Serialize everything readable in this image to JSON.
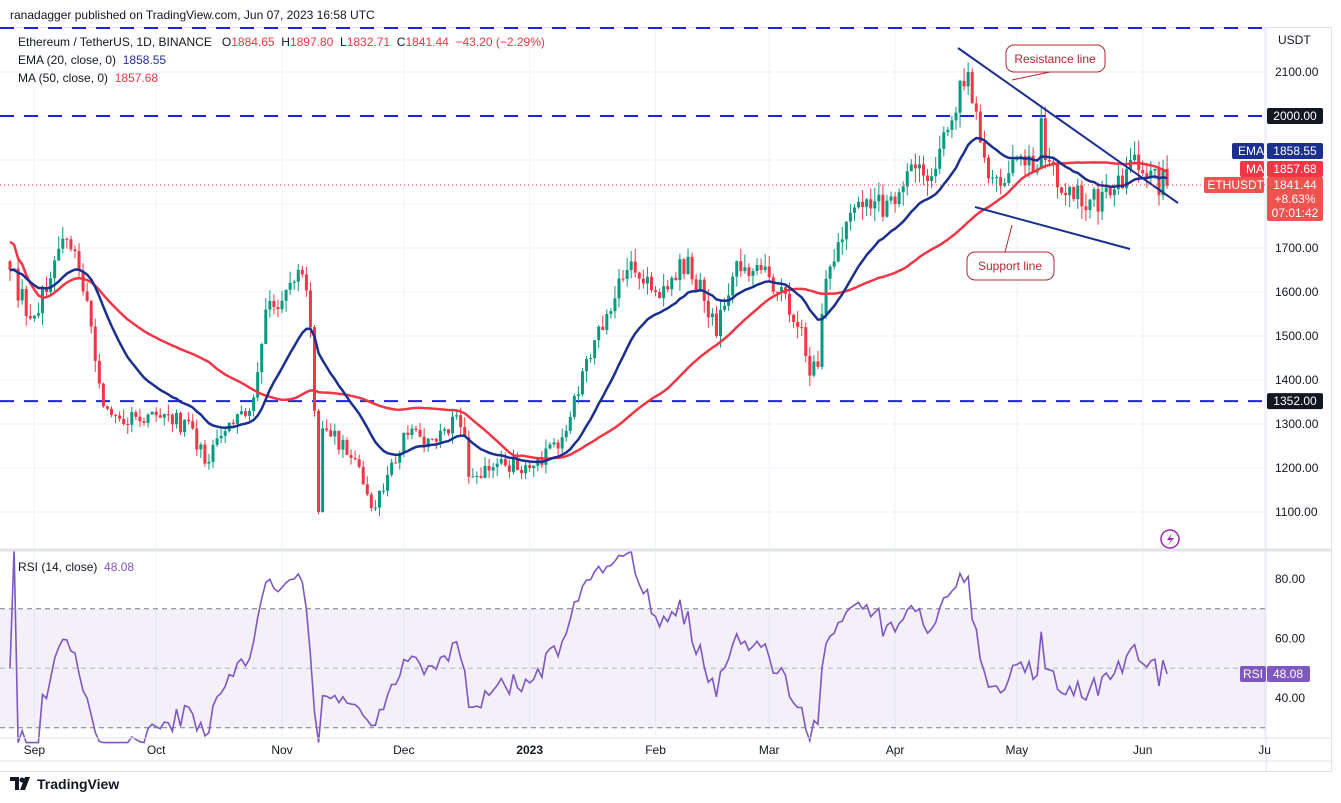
{
  "header": {
    "published": "ranadagger published on TradingView.com, Jun 07, 2023 16:58 UTC"
  },
  "legend": {
    "symbol": "Ethereum / TetherUS, 1D, BINANCE",
    "o_label": "O",
    "o": "1884.65",
    "h_label": "H",
    "h": "1897.80",
    "l_label": "L",
    "l": "1832.71",
    "c_label": "C",
    "c": "1841.44",
    "change": "−43.20 (−2.29%)",
    "ema_label": "EMA (20, close, 0)",
    "ema": "1858.55",
    "ma_label": "MA (50, close, 0)",
    "ma": "1857.68",
    "rsi_label": "RSI (14, close)",
    "rsi": "48.08"
  },
  "colors": {
    "up": "#089981",
    "down": "#f23645",
    "ema": "#1b2f8f",
    "ma": "#f23645",
    "rsi": "#7e57c2",
    "level": "#1e22e6"
  },
  "chart_data": {
    "type": "candlestick",
    "title": "Ethereum / TetherUS, 1D, BINANCE",
    "start_date": "2022-08-26",
    "close_keypoints": [
      [
        0,
        1650
      ],
      [
        5,
        1540
      ],
      [
        9,
        1600
      ],
      [
        14,
        1720
      ],
      [
        19,
        1580
      ],
      [
        23,
        1340
      ],
      [
        28,
        1300
      ],
      [
        36,
        1320
      ],
      [
        45,
        1290
      ],
      [
        48,
        1210
      ],
      [
        55,
        1300
      ],
      [
        60,
        1360
      ],
      [
        63,
        1560
      ],
      [
        67,
        1580
      ],
      [
        72,
        1640
      ],
      [
        74,
        1520
      ],
      [
        75,
        1330
      ],
      [
        76,
        1100
      ],
      [
        77,
        1290
      ],
      [
        85,
        1220
      ],
      [
        88,
        1140
      ],
      [
        90,
        1110
      ],
      [
        97,
        1280
      ],
      [
        105,
        1260
      ],
      [
        110,
        1320
      ],
      [
        112,
        1270
      ],
      [
        113,
        1180
      ],
      [
        120,
        1210
      ],
      [
        128,
        1200
      ],
      [
        136,
        1270
      ],
      [
        141,
        1420
      ],
      [
        147,
        1550
      ],
      [
        152,
        1650
      ],
      [
        159,
        1600
      ],
      [
        167,
        1680
      ],
      [
        171,
        1580
      ],
      [
        174,
        1500
      ],
      [
        179,
        1670
      ],
      [
        185,
        1650
      ],
      [
        189,
        1600
      ],
      [
        195,
        1520
      ],
      [
        197,
        1410
      ],
      [
        199,
        1430
      ],
      [
        201,
        1630
      ],
      [
        206,
        1760
      ],
      [
        212,
        1790
      ],
      [
        218,
        1800
      ],
      [
        224,
        1890
      ],
      [
        228,
        1880
      ],
      [
        232,
        1990
      ],
      [
        234,
        2080
      ],
      [
        236,
        2100
      ],
      [
        238,
        2010
      ],
      [
        239,
        1940
      ],
      [
        242,
        1860
      ],
      [
        246,
        1870
      ],
      [
        251,
        1910
      ],
      [
        253,
        1880
      ],
      [
        254,
        1995
      ],
      [
        255,
        1900
      ],
      [
        260,
        1820
      ],
      [
        266,
        1810
      ],
      [
        271,
        1820
      ],
      [
        276,
        1900
      ],
      [
        279,
        1870
      ],
      [
        282,
        1880
      ],
      [
        283,
        1820
      ],
      [
        284,
        1880
      ],
      [
        285,
        1841.44
      ]
    ],
    "y_axis": {
      "unit": "USDT",
      "ticks": [
        "2100.00",
        "1700.00",
        "1600.00",
        "1500.00",
        "1400.00",
        "1300.00",
        "1200.00",
        "1100.00"
      ],
      "range": [
        1000,
        2240
      ]
    },
    "x_axis": {
      "ticks": [
        "Sep",
        "Oct",
        "Nov",
        "Dec",
        "2023",
        "Feb",
        "Mar",
        "Apr",
        "May",
        "Jun",
        "Ju"
      ]
    },
    "levels": [
      {
        "label": "2000.00",
        "value": 2000
      },
      {
        "label": "1352.00",
        "value": 1352
      }
    ],
    "price_labels": {
      "ema_tag": "EMA",
      "ema_value": "1858.55",
      "ma_tag": "MA",
      "ma_value": "1857.68",
      "sym_tag": "ETHUSDT",
      "last": "1841.44",
      "pct": "+8.63%",
      "countdown": "07:01:42"
    },
    "trendlines": [
      {
        "name": "Resistance line",
        "from": [
          "2023-04-16",
          2140
        ],
        "to": [
          "2023-06-09",
          1800
        ]
      },
      {
        "name": "Support line",
        "from": [
          "2023-04-20",
          1810
        ],
        "to": [
          "2023-06-01",
          1700
        ]
      }
    ],
    "annotations": {
      "resistance": "Resistance line",
      "support": "Support line"
    },
    "rsi": {
      "ticks": [
        "80.00",
        "60.00",
        "40.00"
      ],
      "range": [
        22,
        92
      ],
      "bands": [
        30,
        70
      ],
      "mid": 50,
      "last": 48.08,
      "tag": "RSI",
      "tag_value": "48.08"
    }
  },
  "footer": {
    "brand": "TradingView"
  }
}
